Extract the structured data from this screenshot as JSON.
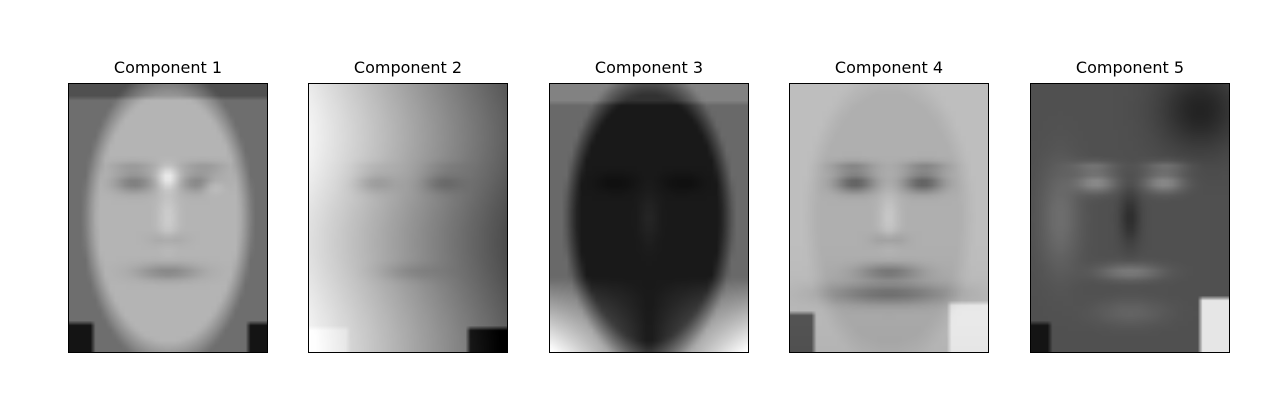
{
  "figure": {
    "background": "#ffffff",
    "colormap": "gray",
    "panels": [
      {
        "title": "Component 1"
      },
      {
        "title": "Component 2"
      },
      {
        "title": "Component 3"
      },
      {
        "title": "Component 4"
      },
      {
        "title": "Component 5"
      }
    ]
  }
}
